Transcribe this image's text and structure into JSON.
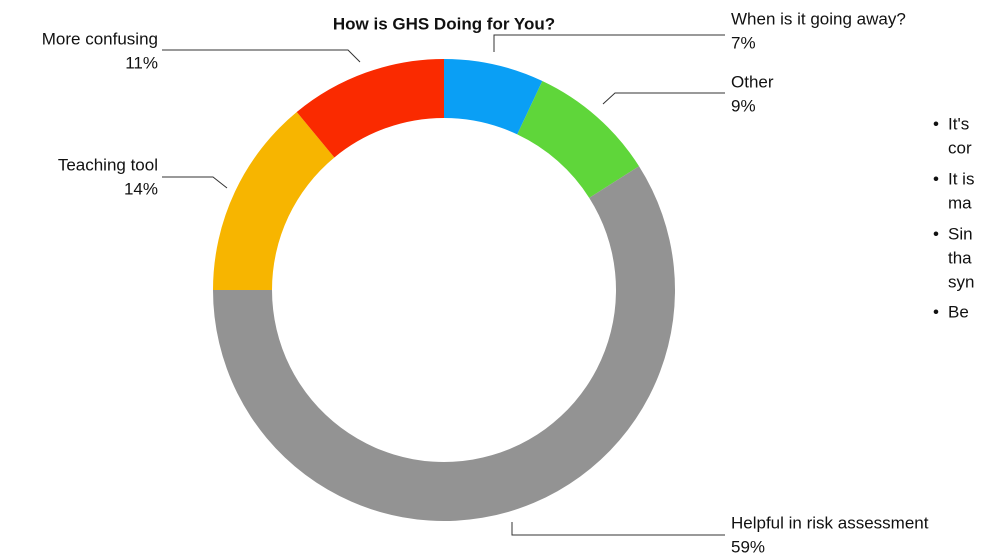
{
  "chart_data": {
    "type": "donut",
    "title": "How is GHS Doing for You?",
    "categories": [
      "When is it going away?",
      "Other",
      "Helpful in risk assessment",
      "Teaching tool",
      "More confusing"
    ],
    "values": [
      7,
      9,
      59,
      14,
      11
    ],
    "value_labels": [
      "7%",
      "9%",
      "59%",
      "14%",
      "11%"
    ],
    "colors": [
      "#0a9ff5",
      "#5fd63a",
      "#939393",
      "#f7b500",
      "#fa2a00"
    ],
    "annotations": [
      [
        "It's",
        "cor"
      ],
      [
        "It is",
        "ma"
      ],
      [
        "Sin",
        "tha",
        "syn"
      ],
      [
        "Be"
      ]
    ]
  }
}
